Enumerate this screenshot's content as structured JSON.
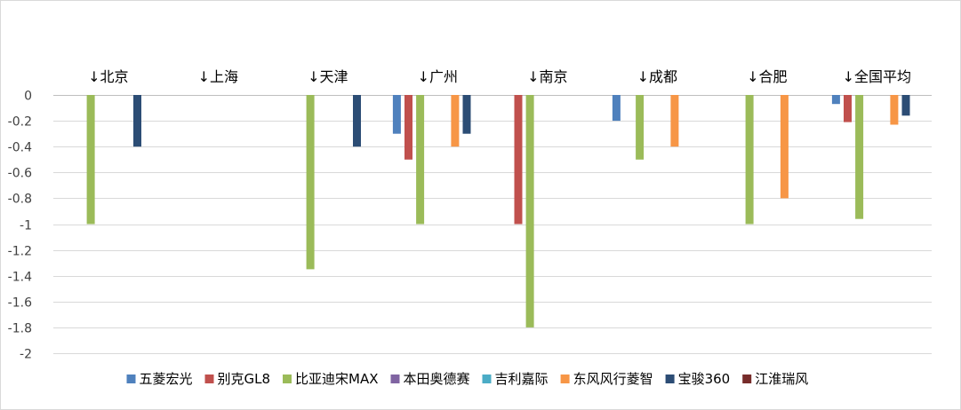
{
  "chart_data": {
    "type": "bar",
    "categories": [
      "↓北京",
      "↓上海",
      "↓天津",
      "↓广州",
      "↓南京",
      "↓成都",
      "↓合肥",
      "↓全国平均"
    ],
    "ylim": [
      -2,
      0
    ],
    "yticks": [
      "0",
      "-0.2",
      "-0.4",
      "-0.6",
      "-0.8",
      "-1",
      "-1.2",
      "-1.4",
      "-1.6",
      "-1.8",
      "-2"
    ],
    "grid": true,
    "legend_position": "bottom",
    "series": [
      {
        "name": "五菱宏光",
        "color": "#4f81bd",
        "values": [
          0,
          0,
          0,
          -0.3,
          0,
          -0.2,
          0,
          -0.07
        ]
      },
      {
        "name": "别克GL8",
        "color": "#c0504d",
        "values": [
          0,
          0,
          0,
          -0.5,
          -1,
          0,
          0,
          -0.21
        ]
      },
      {
        "name": "比亚迪宋MAX",
        "color": "#9bbb59",
        "values": [
          -1,
          0,
          -1.35,
          -1,
          -1.8,
          -0.5,
          -1,
          -0.96
        ]
      },
      {
        "name": "本田奥德赛",
        "color": "#8064a2",
        "values": [
          0,
          0,
          0,
          0,
          0,
          0,
          0,
          0
        ]
      },
      {
        "name": "吉利嘉际",
        "color": "#4bacc6",
        "values": [
          0,
          0,
          0,
          0,
          0,
          0,
          0,
          0
        ]
      },
      {
        "name": "东风风行菱智",
        "color": "#f79646",
        "values": [
          0,
          0,
          0,
          -0.4,
          0,
          -0.4,
          -0.8,
          -0.23
        ]
      },
      {
        "name": "宝骏360",
        "color": "#2c4d75",
        "values": [
          -0.4,
          0,
          -0.4,
          -0.3,
          0,
          0,
          0,
          -0.16
        ]
      },
      {
        "name": "江淮瑞风",
        "color": "#772c2a",
        "values": [
          0,
          0,
          0,
          0,
          0,
          0,
          0,
          0
        ]
      }
    ]
  }
}
